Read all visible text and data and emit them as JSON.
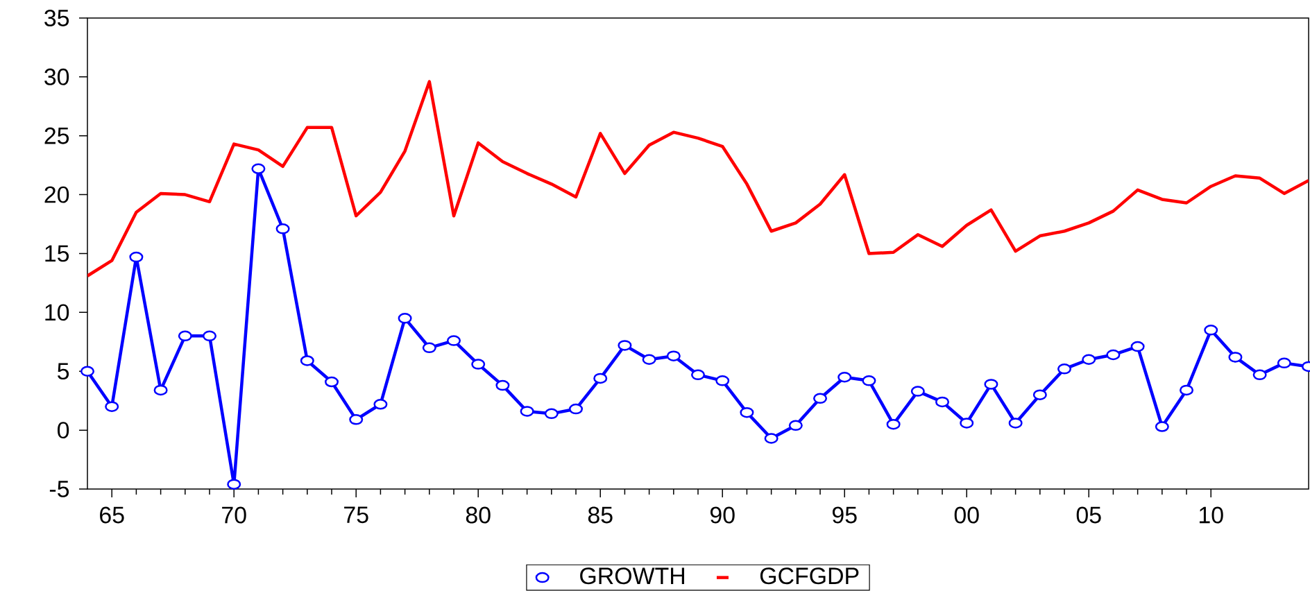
{
  "chart_data": {
    "type": "line",
    "x": [
      1964,
      1965,
      1966,
      1967,
      1968,
      1969,
      1970,
      1971,
      1972,
      1973,
      1974,
      1975,
      1976,
      1977,
      1978,
      1979,
      1980,
      1981,
      1982,
      1983,
      1984,
      1985,
      1986,
      1987,
      1988,
      1989,
      1990,
      1991,
      1992,
      1993,
      1994,
      1995,
      1996,
      1997,
      1998,
      1999,
      2000,
      2001,
      2002,
      2003,
      2004,
      2005,
      2006,
      2007,
      2008,
      2009,
      2010,
      2011,
      2012,
      2013,
      2014
    ],
    "series": [
      {
        "name": "GROWTH",
        "color": "#0000ff",
        "marker": "circle",
        "values": [
          5.0,
          2.0,
          14.7,
          3.4,
          8.0,
          8.0,
          -4.6,
          22.2,
          17.1,
          5.9,
          4.1,
          0.9,
          2.2,
          9.5,
          7.0,
          7.6,
          5.6,
          3.8,
          1.6,
          1.4,
          1.8,
          4.4,
          7.2,
          6.0,
          6.3,
          4.7,
          4.2,
          1.5,
          -0.7,
          0.4,
          2.7,
          4.5,
          4.2,
          0.5,
          3.3,
          2.4,
          0.6,
          3.9,
          0.6,
          3.0,
          5.2,
          6.0,
          6.4,
          7.1,
          0.3,
          3.4,
          8.5,
          6.2,
          4.7,
          5.7,
          5.4
        ]
      },
      {
        "name": "GCFGDP",
        "color": "#ff0000",
        "marker": "none",
        "values": [
          13.1,
          14.4,
          18.5,
          20.1,
          20.0,
          19.4,
          24.3,
          23.8,
          22.4,
          25.7,
          25.7,
          18.2,
          20.2,
          23.7,
          29.6,
          18.2,
          24.4,
          22.8,
          21.8,
          20.9,
          19.8,
          25.2,
          21.8,
          24.2,
          25.3,
          24.8,
          24.1,
          20.9,
          16.9,
          17.6,
          19.2,
          21.7,
          15.0,
          15.1,
          16.6,
          15.6,
          17.4,
          18.7,
          15.2,
          16.5,
          16.9,
          17.6,
          18.6,
          20.4,
          19.6,
          19.3,
          20.7,
          21.6,
          21.4,
          20.1,
          21.2
        ]
      }
    ],
    "xlim": [
      1964,
      2014
    ],
    "xticks": [
      {
        "value": 1965,
        "label": "65"
      },
      {
        "value": 1970,
        "label": "70"
      },
      {
        "value": 1975,
        "label": "75"
      },
      {
        "value": 1980,
        "label": "80"
      },
      {
        "value": 1985,
        "label": "85"
      },
      {
        "value": 1990,
        "label": "90"
      },
      {
        "value": 1995,
        "label": "95"
      },
      {
        "value": 2000,
        "label": "00"
      },
      {
        "value": 2005,
        "label": "05"
      },
      {
        "value": 2010,
        "label": "10"
      }
    ],
    "ylim": [
      -5,
      35
    ],
    "yticks": [
      -5,
      0,
      5,
      10,
      15,
      20,
      25,
      30,
      35
    ],
    "grid": false,
    "legend": "bottom"
  }
}
